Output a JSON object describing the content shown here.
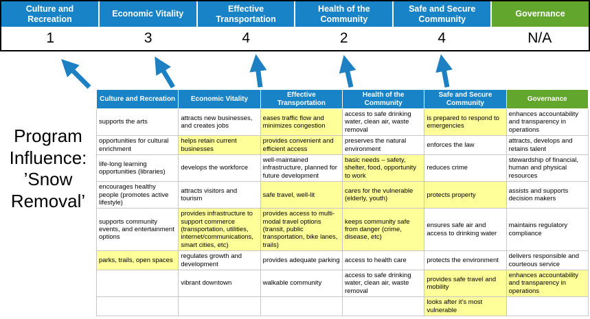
{
  "title": {
    "text": "Program Influence: ’Snow Removal’"
  },
  "scoreboard": {
    "columns": [
      {
        "label": "Culture and Recreation",
        "score": "1"
      },
      {
        "label": "Economic Vitality",
        "score": "3"
      },
      {
        "label": "Effective Transportation",
        "score": "4"
      },
      {
        "label": "Health of the Community",
        "score": "2"
      },
      {
        "label": "Safe and Secure Community",
        "score": "4"
      },
      {
        "label": "Governance",
        "score": "N/A"
      }
    ]
  },
  "arrows": {
    "count": 5
  },
  "table": {
    "headers": [
      "Culture and Recreation",
      "Economic Vitality",
      "Effective Transportation",
      "Health of the Community",
      "Safe and Secure Community",
      "Governance"
    ],
    "rows": [
      [
        {
          "t": "supports the arts",
          "h": false
        },
        {
          "t": "attracts new businesses, and creates jobs",
          "h": false
        },
        {
          "t": "eases traffic flow and minimizes congestion",
          "h": true
        },
        {
          "t": "access to safe drinking water, clean air, waste removal",
          "h": false
        },
        {
          "t": "is prepared to respond to emergencies",
          "h": true
        },
        {
          "t": "enhances accountability and transparency in operations",
          "h": false
        }
      ],
      [
        {
          "t": "opportunities for cultural enrichment",
          "h": false
        },
        {
          "t": "helps retain current businesses",
          "h": true
        },
        {
          "t": "provides convenient and efficient access",
          "h": true
        },
        {
          "t": "preserves the natural environment",
          "h": false
        },
        {
          "t": "enforces the law",
          "h": false
        },
        {
          "t": "attracts, develops and retains talent",
          "h": false
        }
      ],
      [
        {
          "t": "life-long learning opportunities (libraries)",
          "h": false
        },
        {
          "t": "develops the workforce",
          "h": false
        },
        {
          "t": "well-maintained infrastructure, planned for future development",
          "h": false
        },
        {
          "t": "basic needs – safety, shelter, food, opportunity to work",
          "h": true
        },
        {
          "t": "reduces crime",
          "h": false
        },
        {
          "t": "stewardship of financial, human and physical resources",
          "h": false
        }
      ],
      [
        {
          "t": "encourages healthy people (promotes active lifestyle)",
          "h": false
        },
        {
          "t": "attracts visitors and tourism",
          "h": false
        },
        {
          "t": "safe travel, well-lit",
          "h": true
        },
        {
          "t": "cares for the vulnerable (elderly, youth)",
          "h": true
        },
        {
          "t": "protects property",
          "h": true
        },
        {
          "t": "assists and supports decision makers",
          "h": false
        }
      ],
      [
        {
          "t": "supports community events, and entertainment options",
          "h": false
        },
        {
          "t": "provides infrastructure to support commerce (transportation, utilities, internet/communications, smart cities, etc)",
          "h": true
        },
        {
          "t": "provides access to multi-modal travel options (transit, public transportation, bike lanes, trails)",
          "h": true
        },
        {
          "t": "keeps community safe from danger (crime, disease, etc)",
          "h": true
        },
        {
          "t": "ensures safe air and access to drinking water",
          "h": false
        },
        {
          "t": "maintains regulatory compliance",
          "h": false
        }
      ],
      [
        {
          "t": "parks, trails, open spaces",
          "h": true
        },
        {
          "t": "regulates growth and development",
          "h": false
        },
        {
          "t": "provides adequate parking",
          "h": false
        },
        {
          "t": "access to health care",
          "h": false
        },
        {
          "t": "protects the environment",
          "h": false
        },
        {
          "t": "delivers responsible and courteous service",
          "h": false
        }
      ],
      [
        {
          "t": "",
          "h": false
        },
        {
          "t": "vibrant downtown",
          "h": false
        },
        {
          "t": "walkable community",
          "h": false
        },
        {
          "t": "access to safe drinking water, clean air, waste removal",
          "h": false
        },
        {
          "t": "provides safe travel and mobility",
          "h": true
        },
        {
          "t": "enhances accountability and transparency in operations",
          "h": true
        }
      ],
      [
        {
          "t": "",
          "h": false
        },
        {
          "t": "",
          "h": false
        },
        {
          "t": "",
          "h": false
        },
        {
          "t": "",
          "h": false
        },
        {
          "t": "looks after it's most vulnerable",
          "h": true
        },
        {
          "t": "",
          "h": false
        }
      ]
    ]
  },
  "colors": {
    "header_blue": "#1883C6",
    "header_green": "#62A62E",
    "highlight_yellow": "#FFFF99",
    "arrow_blue": "#1C80C2",
    "border_black": "#000000"
  }
}
